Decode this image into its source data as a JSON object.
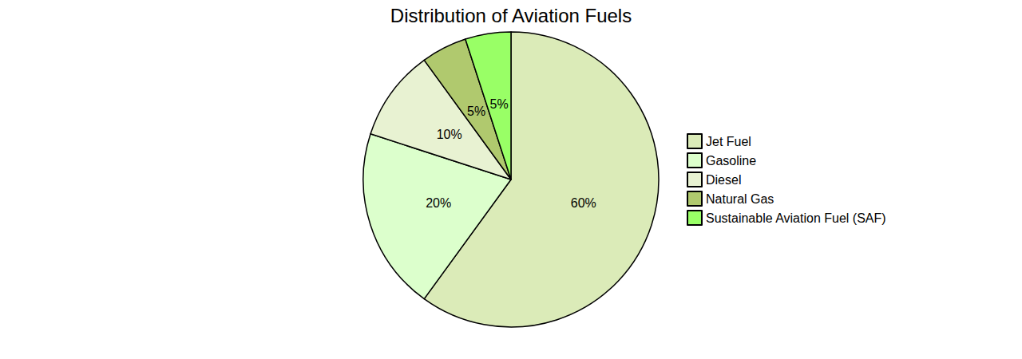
{
  "chart_data": {
    "type": "pie",
    "title": "Distribution of Aviation Fuels",
    "categories": [
      "Jet Fuel",
      "Gasoline",
      "Diesel",
      "Natural Gas",
      "Sustainable Aviation Fuel (SAF)"
    ],
    "values": [
      60,
      20,
      10,
      5,
      5
    ],
    "value_labels": [
      "60%",
      "20%",
      "10%",
      "5%",
      "5%"
    ],
    "colors": [
      "#dbebb8",
      "#dcffcc",
      "#e8f2d2",
      "#b0c96e",
      "#99ff66"
    ],
    "data_labels": true,
    "legend": "right"
  }
}
